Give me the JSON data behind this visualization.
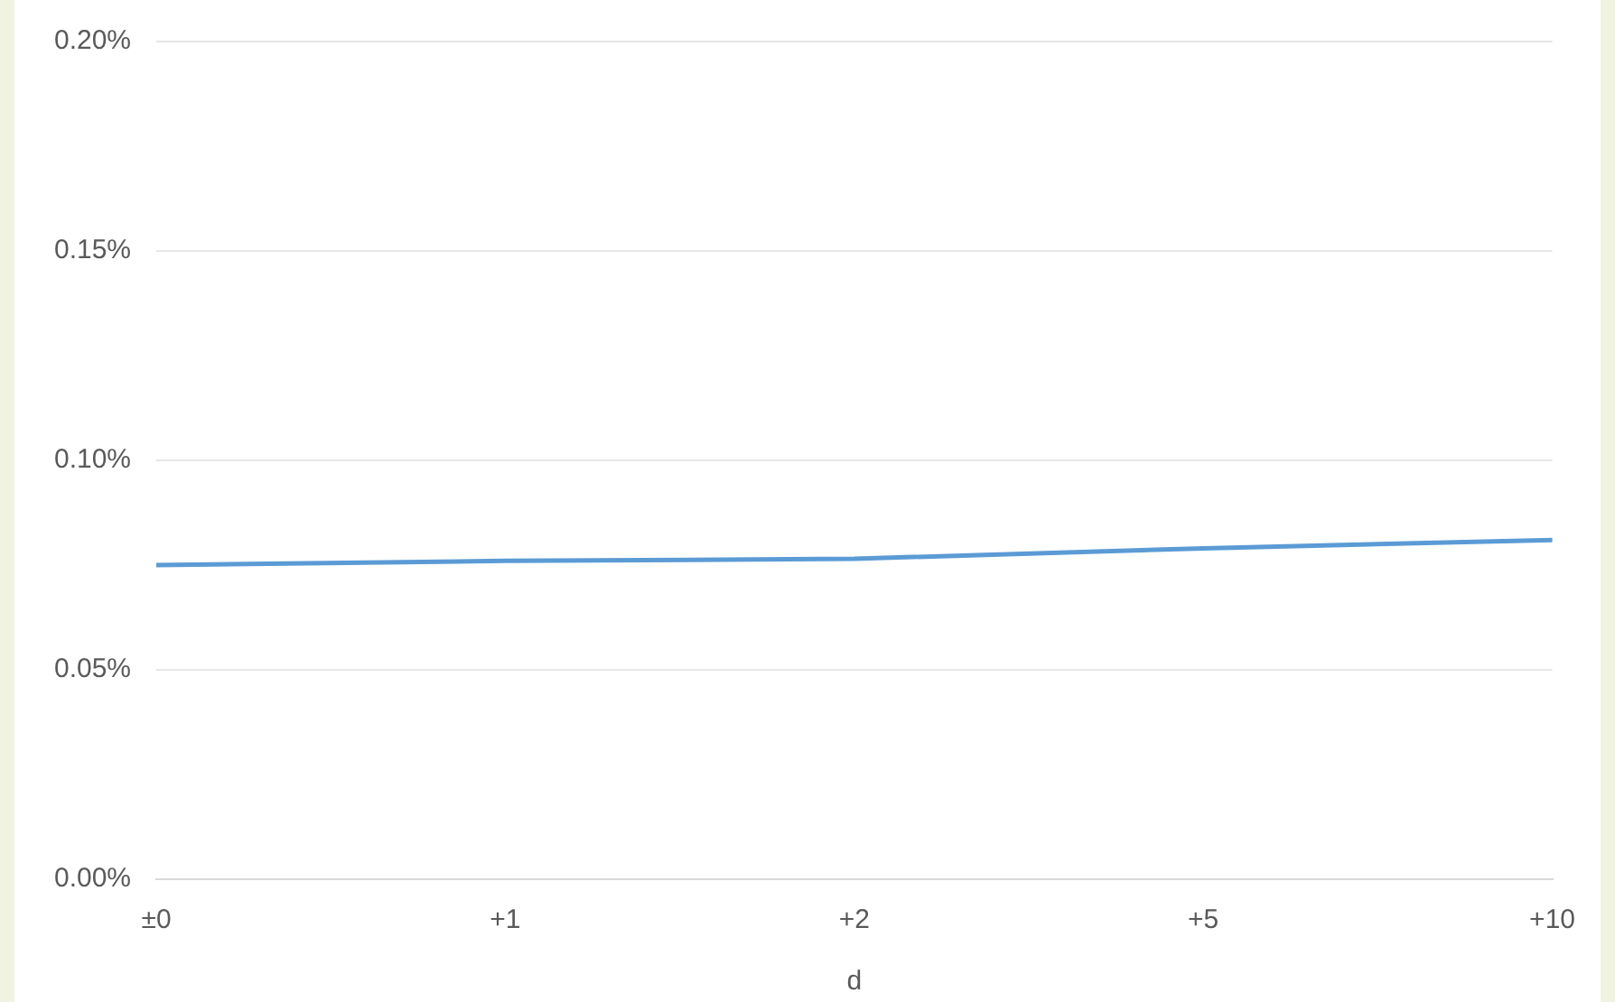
{
  "chart_data": {
    "type": "line",
    "xlabel": "d",
    "categories": [
      "±0",
      "+1",
      "+2",
      "+5",
      "+10"
    ],
    "series": [
      {
        "color": "#5b9bd5",
        "values": [
          0.075,
          0.076,
          0.0765,
          0.079,
          0.081
        ]
      }
    ],
    "ylim": [
      0,
      0.2
    ],
    "yticks": [
      {
        "value": 0,
        "label": "0.00%"
      },
      {
        "value": 0.05,
        "label": "0.05%"
      },
      {
        "value": 0.1,
        "label": "0.10%"
      },
      {
        "value": 0.15,
        "label": "0.15%"
      },
      {
        "value": 0.2,
        "label": "0.20%"
      }
    ],
    "grid": "y",
    "legend": false,
    "marker": "none",
    "line_style": "solid"
  }
}
